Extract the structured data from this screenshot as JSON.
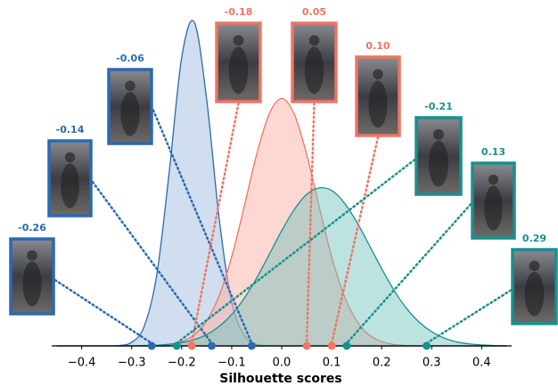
{
  "chart_data": {
    "type": "density",
    "xlabel": "Silhouette scores",
    "xlim": [
      -0.46,
      0.46
    ],
    "xticks": [
      {
        "value": -0.4,
        "label": "−0.4"
      },
      {
        "value": -0.3,
        "label": "−0.3"
      },
      {
        "value": -0.2,
        "label": "−0.2"
      },
      {
        "value": -0.1,
        "label": "−0.1"
      },
      {
        "value": 0,
        "label": "0.0"
      },
      0.1,
      0.2,
      0.3,
      0.4
    ],
    "ylim": [
      0,
      10
    ],
    "x": [
      -0.45,
      -0.425,
      -0.4,
      -0.375,
      -0.35,
      -0.325,
      -0.3,
      -0.275,
      -0.25,
      -0.225,
      -0.2,
      -0.175,
      -0.15,
      -0.125,
      -0.1,
      -0.075,
      -0.05,
      -0.025,
      0,
      0.025,
      0.05,
      0.075,
      0.1,
      0.125,
      0.15,
      0.175,
      0.2,
      0.225,
      0.25,
      0.275,
      0.3,
      0.325,
      0.35,
      0.375,
      0.4,
      0.425,
      0.45
    ],
    "series": [
      {
        "color": "#2a6ab0",
        "fill_color": "#a9c2e2",
        "values": [
          0,
          0,
          0,
          0,
          0,
          0.01,
          0.11,
          0.59,
          2.14,
          5.26,
          8.74,
          9.82,
          7.47,
          3.85,
          1.34,
          0.32,
          0.05,
          0,
          0,
          0,
          0,
          0,
          0,
          0,
          0,
          0,
          0,
          0,
          0,
          0,
          0,
          0,
          0,
          0,
          0,
          0,
          0
        ],
        "scores": [
          -0.26,
          -0.14,
          -0.06
        ],
        "score_labels": [
          "-0.26",
          "-0.14",
          "-0.06"
        ]
      },
      {
        "color": "#f07563",
        "fill_color": "#fbb0a5",
        "values": [
          0,
          0,
          0,
          0,
          0,
          0,
          0,
          0,
          0.01,
          0.04,
          0.13,
          0.33,
          0.76,
          1.52,
          2.7,
          4.22,
          5.81,
          7.03,
          7.5,
          7.03,
          5.81,
          4.22,
          2.7,
          1.52,
          0.76,
          0.33,
          0.13,
          0.04,
          0.01,
          0,
          0,
          0,
          0,
          0,
          0,
          0,
          0
        ],
        "scores": [
          -0.18,
          0.05,
          0.1
        ],
        "score_labels": [
          "-0.18",
          "0.05",
          "0.10"
        ]
      },
      {
        "color": "#17918e",
        "fill_color": "#6cc0bc",
        "values": [
          0,
          0,
          0,
          0,
          0,
          0,
          0,
          0.01,
          0.02,
          0.05,
          0.1,
          0.19,
          0.34,
          0.59,
          0.95,
          1.44,
          2.06,
          2.77,
          3.49,
          4.13,
          4.59,
          4.79,
          4.71,
          4.34,
          3.76,
          3.06,
          2.34,
          1.68,
          1.13,
          0.72,
          0.43,
          0.24,
          0.12,
          0.06,
          0.03,
          0.01,
          0
        ],
        "scores": [
          -0.21,
          0.13,
          0.29
        ],
        "score_labels": [
          "-0.21",
          "0.13",
          "0.29"
        ]
      }
    ]
  }
}
